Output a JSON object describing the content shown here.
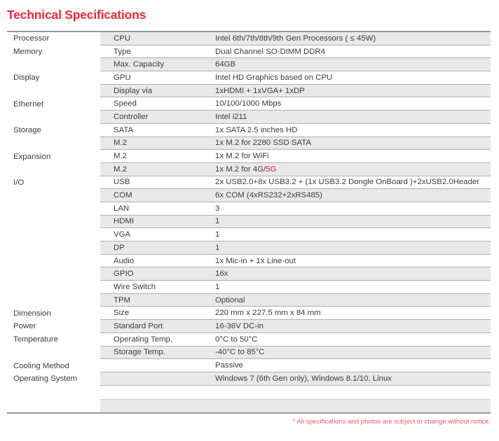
{
  "page": {
    "title": "Technical Specifications",
    "footnote": "* All specifications and photos are subject to change without notice.",
    "colors": {
      "accent_red": "#ed2939",
      "footnote_red": "#ef5a64",
      "value_highlight_red": "#e8112d",
      "row_shade": "#e9e9e9",
      "separator": "#b0b0b0",
      "frame_border": "#999999",
      "text": "#3c3c3c"
    }
  },
  "table": {
    "rows": [
      {
        "category": "Processor",
        "param": "CPU",
        "value": "Intel 6th/7th/8th/9th Gen Processors ( ≤ 45W)",
        "shaded": true
      },
      {
        "category": "Memory",
        "param": "Type",
        "value": "Dual Channel SO-DIMM DDR4",
        "shaded": false
      },
      {
        "category": "",
        "param": "Max. Capacity",
        "value": "64GB",
        "shaded": true
      },
      {
        "category": "Display",
        "param": "GPU",
        "value": "Intel HD Graphics based on CPU",
        "shaded": false
      },
      {
        "category": "",
        "param": "Display via",
        "value": "1xHDMI + 1xVGA+ 1xDP",
        "shaded": true
      },
      {
        "category": "Ethernet",
        "param": "Speed",
        "value": "10/100/1000 Mbps",
        "shaded": false
      },
      {
        "category": "",
        "param": "Controller",
        "value": "Intel i211",
        "shaded": true
      },
      {
        "category": "Storage",
        "param": "SATA",
        "value": "1x SATA 2.5 inches HD",
        "shaded": false
      },
      {
        "category": "",
        "param": "M.2",
        "value": "1x M.2 for 2280 SSD SATA",
        "shaded": true
      },
      {
        "category": "Expansion",
        "param": "M.2",
        "value": "1x M.2 for WiFi",
        "shaded": false
      },
      {
        "category": "",
        "param": "M.2",
        "value": "1x M.2 for 4G/",
        "value_red": "5G",
        "shaded": true
      },
      {
        "category": "I/O",
        "param": "USB",
        "value": "2x USB2.0+8x USB3.2 + (1x USB3.2 Dongle OnBoard )+2xUSB2.0Header",
        "shaded": false
      },
      {
        "category": "",
        "param": "COM",
        "value": "6x COM (4xRS232+2xRS485)",
        "shaded": true
      },
      {
        "category": "",
        "param": "LAN",
        "value": "3",
        "shaded": false
      },
      {
        "category": "",
        "param": "HDMI",
        "value": "1",
        "shaded": true
      },
      {
        "category": "",
        "param": "VGA",
        "value": "1",
        "shaded": false
      },
      {
        "category": "",
        "param": "DP",
        "value": "1",
        "shaded": true
      },
      {
        "category": "",
        "param": "Audio",
        "value": "1x Mic-in + 1x Line-out",
        "shaded": false
      },
      {
        "category": "",
        "param": "GPIO",
        "value": "16x",
        "shaded": true
      },
      {
        "category": "",
        "param": "Wire Switch",
        "value": "1",
        "shaded": false
      },
      {
        "category": "",
        "param": "TPM",
        "value": "Optional",
        "shaded": true
      },
      {
        "category": "Dimension",
        "param": "Size",
        "value": "220 mm x 227.5 mm x 84 mm",
        "shaded": false
      },
      {
        "category": "Power",
        "param": "Standard Port",
        "value": "16-36V DC-in",
        "shaded": true
      },
      {
        "category": "Temperature",
        "param": "Operating Temp.",
        "value": "0°C to 50°C",
        "shaded": false
      },
      {
        "category": "",
        "param": "Storage Temp.",
        "value": "-40°C to 85°C",
        "shaded": true
      },
      {
        "category": "Cooling Method",
        "param": "",
        "value": "Passive",
        "shaded": false
      },
      {
        "category": "Operating System",
        "param": "",
        "value": "Windows 7 (6th Gen only), Windows 8.1/10, Linux",
        "shaded": true
      }
    ],
    "trailing_empty_row": {
      "shaded": true
    }
  }
}
